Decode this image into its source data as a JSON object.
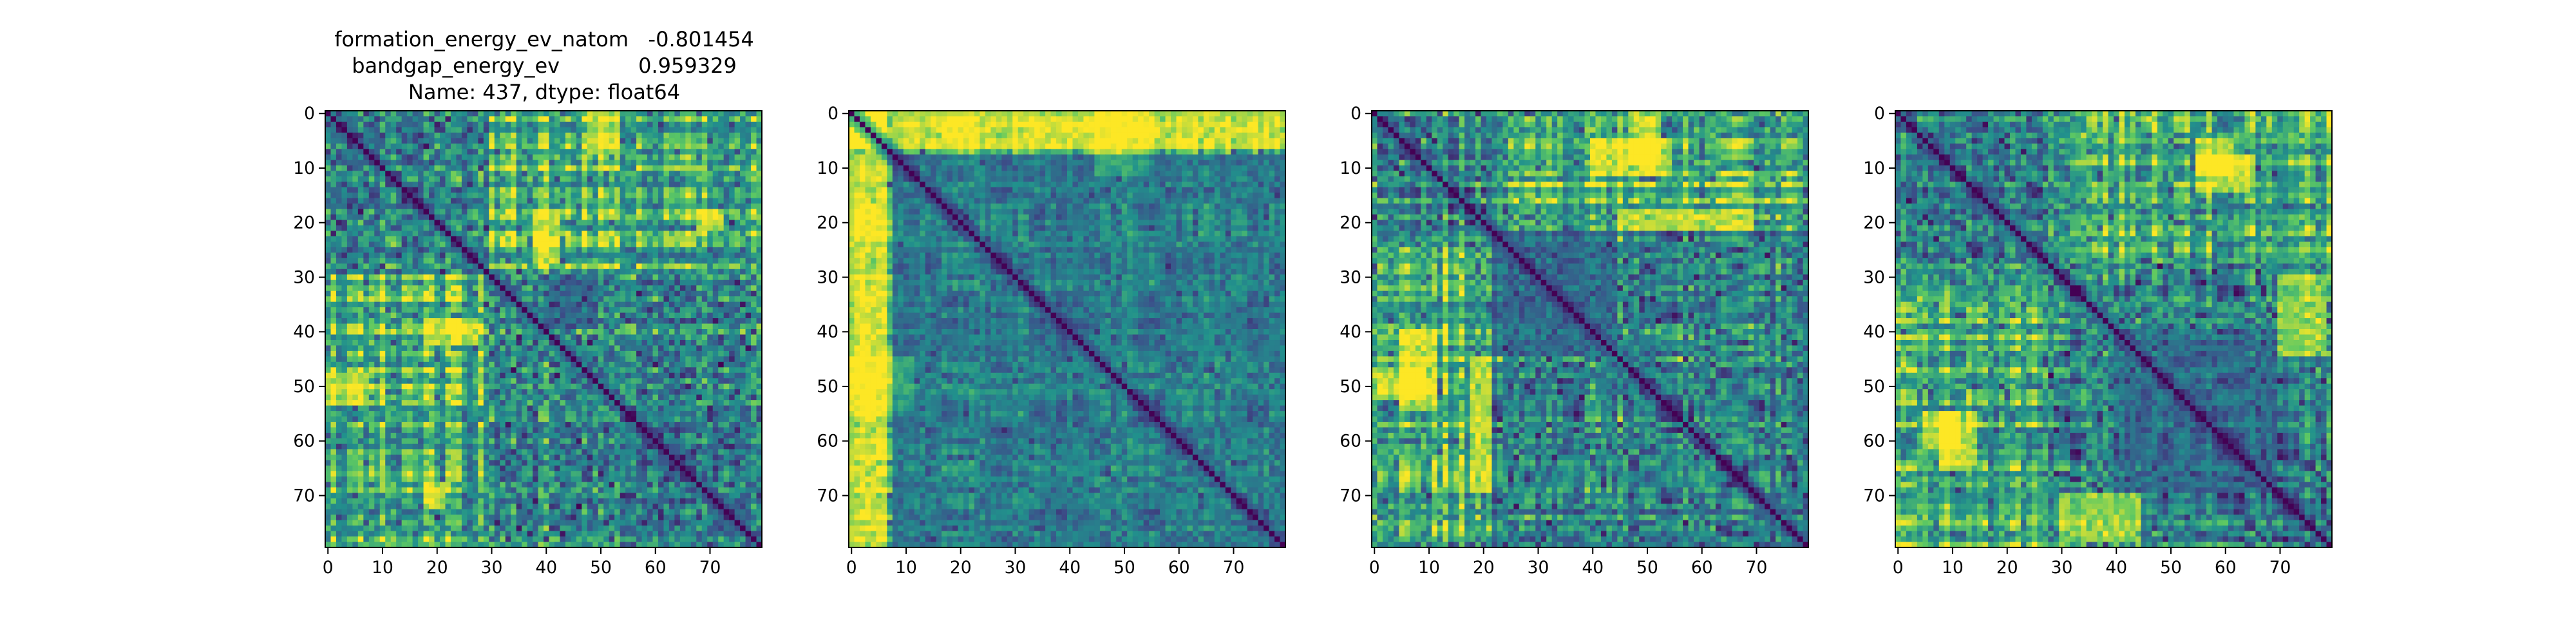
{
  "figure": {
    "title_lines": [
      "formation_energy_ev_natom   -0.801454",
      "bandgap_energy_ev            0.959329",
      "Name: 437, dtype: float64"
    ],
    "colormap": [
      "#440154",
      "#3b528b",
      "#21918c",
      "#5ec962",
      "#fde725"
    ]
  },
  "chart_data": [
    {
      "type": "heatmap",
      "title": "formation_energy_ev_natom   -0.801454\nbandgap_energy_ev            0.959329\nName: 437, dtype: float64",
      "matrix_size": 80,
      "x_ticks": [
        0,
        10,
        20,
        30,
        40,
        50,
        60,
        70
      ],
      "y_ticks": [
        0,
        10,
        20,
        30,
        40,
        50,
        60,
        70
      ],
      "diagonal": 0,
      "value_range": [
        0,
        1
      ],
      "blocks": [
        [
          0,
          30
        ],
        [
          30,
          80
        ]
      ],
      "hot_regions": [
        {
          "rows": [
            38,
            43
          ],
          "cols": [
            18,
            28
          ],
          "value": 0.85
        },
        {
          "rows": [
            18,
            28
          ],
          "cols": [
            38,
            43
          ],
          "value": 0.85
        },
        {
          "rows": [
            68,
            73
          ],
          "cols": [
            18,
            22
          ],
          "value": 0.9
        },
        {
          "rows": [
            18,
            22
          ],
          "cols": [
            68,
            73
          ],
          "value": 0.9
        },
        {
          "rows": [
            48,
            54
          ],
          "cols": [
            0,
            8
          ],
          "value": 0.8
        },
        {
          "rows": [
            0,
            8
          ],
          "cols": [
            48,
            54
          ],
          "value": 0.8
        }
      ],
      "cold_regions": [
        {
          "rows": [
            30,
            40
          ],
          "cols": [
            40,
            50
          ],
          "value": 0.2
        }
      ]
    },
    {
      "type": "heatmap",
      "title": "",
      "matrix_size": 80,
      "x_ticks": [
        0,
        10,
        20,
        30,
        40,
        50,
        60,
        70
      ],
      "y_ticks": [
        0,
        10,
        20,
        30,
        40,
        50,
        60,
        70
      ],
      "diagonal": 0,
      "value_range": [
        0,
        1
      ],
      "blocks": [
        [
          0,
          8
        ],
        [
          8,
          80
        ]
      ],
      "hot_regions": [
        {
          "rows": [
            0,
            7
          ],
          "cols": [
            0,
            80
          ],
          "value": 0.88
        },
        {
          "rows": [
            0,
            80
          ],
          "cols": [
            0,
            7
          ],
          "value": 0.88
        },
        {
          "rows": [
            45,
            55
          ],
          "cols": [
            0,
            12
          ],
          "value": 0.78
        },
        {
          "rows": [
            0,
            12
          ],
          "cols": [
            45,
            55
          ],
          "value": 0.78
        }
      ],
      "cold_regions": [
        {
          "rows": [
            8,
            80
          ],
          "cols": [
            8,
            80
          ],
          "value": 0.35
        }
      ]
    },
    {
      "type": "heatmap",
      "title": "",
      "matrix_size": 80,
      "x_ticks": [
        0,
        10,
        20,
        30,
        40,
        50,
        60,
        70
      ],
      "y_ticks": [
        0,
        10,
        20,
        30,
        40,
        50,
        60,
        70
      ],
      "diagonal": 0,
      "value_range": [
        0,
        1
      ],
      "blocks": [
        [
          0,
          22
        ],
        [
          22,
          80
        ]
      ],
      "hot_regions": [
        {
          "rows": [
            5,
            12
          ],
          "cols": [
            40,
            55
          ],
          "value": 0.88
        },
        {
          "rows": [
            40,
            55
          ],
          "cols": [
            5,
            12
          ],
          "value": 0.88
        },
        {
          "rows": [
            18,
            22
          ],
          "cols": [
            45,
            70
          ],
          "value": 0.85
        },
        {
          "rows": [
            45,
            70
          ],
          "cols": [
            18,
            22
          ],
          "value": 0.85
        },
        {
          "rows": [
            47,
            53
          ],
          "cols": [
            0,
            10
          ],
          "value": 0.82
        },
        {
          "rows": [
            0,
            10
          ],
          "cols": [
            47,
            53
          ],
          "value": 0.82
        }
      ],
      "cold_regions": [
        {
          "rows": [
            22,
            45
          ],
          "cols": [
            22,
            45
          ],
          "value": 0.25
        }
      ]
    },
    {
      "type": "heatmap",
      "title": "",
      "matrix_size": 80,
      "x_ticks": [
        0,
        10,
        20,
        30,
        40,
        50,
        60,
        70
      ],
      "y_ticks": [
        0,
        10,
        20,
        30,
        40,
        50,
        60,
        70
      ],
      "diagonal": 0,
      "value_range": [
        0,
        1
      ],
      "blocks": [
        [
          0,
          28
        ],
        [
          28,
          80
        ]
      ],
      "hot_regions": [
        {
          "rows": [
            55,
            65
          ],
          "cols": [
            8,
            15
          ],
          "value": 0.9
        },
        {
          "rows": [
            8,
            15
          ],
          "cols": [
            55,
            65
          ],
          "value": 0.9
        },
        {
          "rows": [
            5,
            12
          ],
          "cols": [
            55,
            62
          ],
          "value": 0.85
        },
        {
          "rows": [
            55,
            62
          ],
          "cols": [
            5,
            12
          ],
          "value": 0.85
        },
        {
          "rows": [
            70,
            79
          ],
          "cols": [
            30,
            45
          ],
          "value": 0.85
        },
        {
          "rows": [
            30,
            45
          ],
          "cols": [
            70,
            79
          ],
          "value": 0.85
        }
      ],
      "cold_regions": [
        {
          "rows": [
            40,
            70
          ],
          "cols": [
            40,
            70
          ],
          "value": 0.25
        }
      ]
    }
  ]
}
